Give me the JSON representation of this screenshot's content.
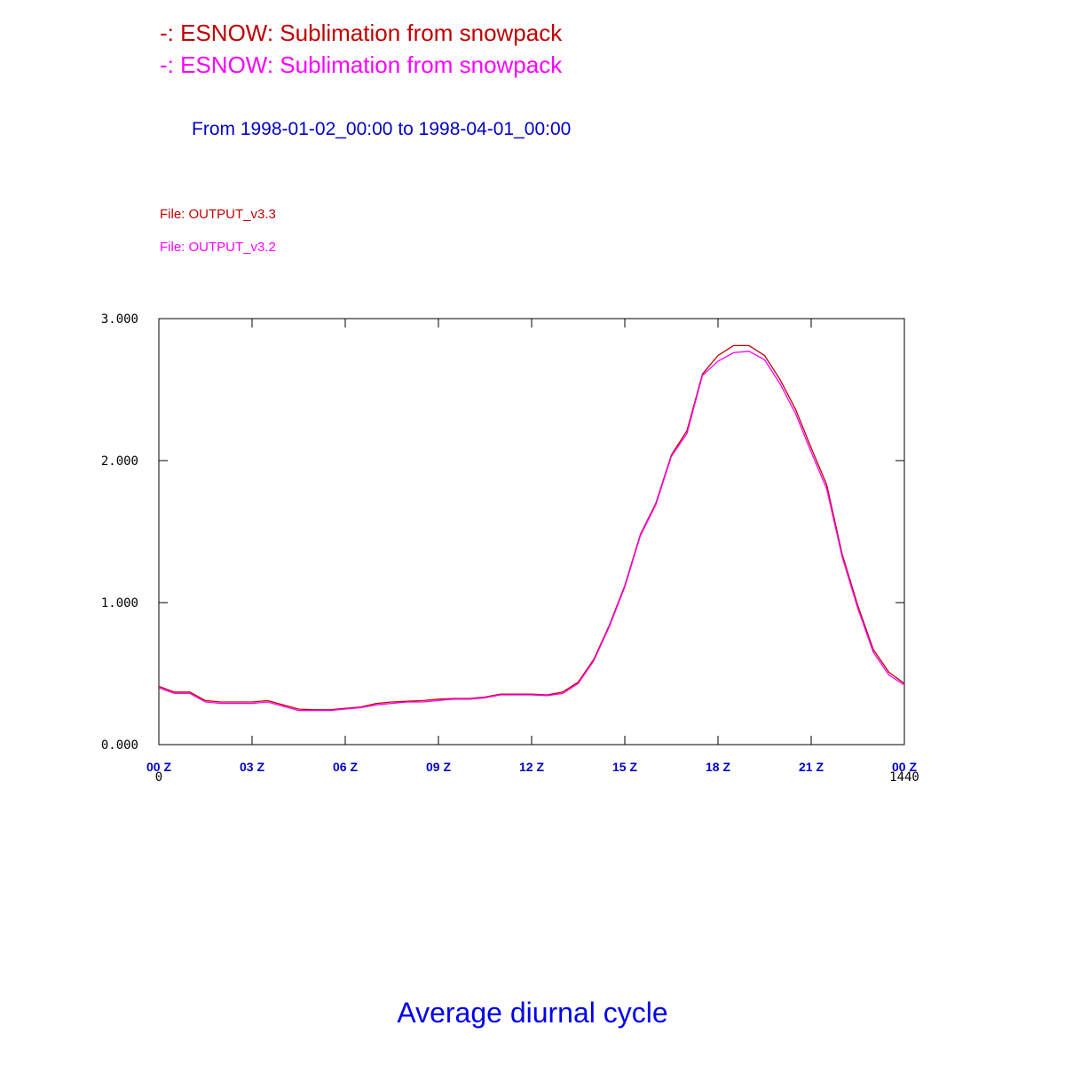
{
  "chart_data": {
    "type": "line",
    "subtitle": "From 1998-01-02_00:00 to 1998-04-01_00:00",
    "files": [
      "File: OUTPUT_v3.3",
      "File: OUTPUT_v3.2"
    ],
    "xlabel": "Average diurnal cycle",
    "x": [
      0,
      30,
      60,
      90,
      120,
      150,
      180,
      210,
      240,
      270,
      300,
      330,
      360,
      390,
      420,
      450,
      480,
      510,
      540,
      570,
      600,
      630,
      660,
      690,
      720,
      750,
      780,
      810,
      840,
      870,
      900,
      930,
      960,
      990,
      1020,
      1050,
      1080,
      1110,
      1140,
      1170,
      1200,
      1230,
      1260,
      1290,
      1320,
      1350,
      1380,
      1410,
      1440
    ],
    "series": [
      {
        "name": "-: ESNOW: Sublimation from snowpack",
        "color": "#c00000",
        "values": [
          0.41,
          0.37,
          0.37,
          0.31,
          0.3,
          0.3,
          0.3,
          0.31,
          0.28,
          0.25,
          0.245,
          0.245,
          0.255,
          0.265,
          0.29,
          0.3,
          0.305,
          0.31,
          0.32,
          0.325,
          0.325,
          0.335,
          0.355,
          0.355,
          0.355,
          0.35,
          0.37,
          0.44,
          0.6,
          0.84,
          1.12,
          1.48,
          1.7,
          2.04,
          2.21,
          2.61,
          2.74,
          2.81,
          2.81,
          2.74,
          2.57,
          2.36,
          2.09,
          1.83,
          1.34,
          0.98,
          0.67,
          0.51,
          0.43
        ]
      },
      {
        "name": "-: ESNOW: Sublimation from snowpack",
        "color": "#ff00ff",
        "values": [
          0.4,
          0.36,
          0.36,
          0.3,
          0.29,
          0.29,
          0.29,
          0.3,
          0.27,
          0.24,
          0.24,
          0.24,
          0.25,
          0.26,
          0.28,
          0.29,
          0.3,
          0.3,
          0.31,
          0.32,
          0.32,
          0.33,
          0.35,
          0.35,
          0.35,
          0.345,
          0.36,
          0.43,
          0.59,
          0.83,
          1.11,
          1.47,
          1.69,
          2.03,
          2.19,
          2.6,
          2.7,
          2.76,
          2.77,
          2.71,
          2.54,
          2.33,
          2.06,
          1.8,
          1.32,
          0.96,
          0.65,
          0.49,
          0.42
        ]
      }
    ],
    "xlim": [
      0,
      1440
    ],
    "xticks": [
      {
        "value": 0,
        "label": "00 Z"
      },
      {
        "value": 180,
        "label": "03 Z"
      },
      {
        "value": 360,
        "label": "06 Z"
      },
      {
        "value": 540,
        "label": "09 Z"
      },
      {
        "value": 720,
        "label": "12 Z"
      },
      {
        "value": 900,
        "label": "15 Z"
      },
      {
        "value": 1080,
        "label": "18 Z"
      },
      {
        "value": 1260,
        "label": "21 Z"
      },
      {
        "value": 1440,
        "label": "00 Z"
      }
    ],
    "ylim": [
      0,
      3
    ],
    "yticks": [
      {
        "value": 0,
        "label": "0.000"
      },
      {
        "value": 1,
        "label": "1.000"
      },
      {
        "value": 2,
        "label": "2.000"
      },
      {
        "value": 3,
        "label": "3.000"
      }
    ]
  }
}
